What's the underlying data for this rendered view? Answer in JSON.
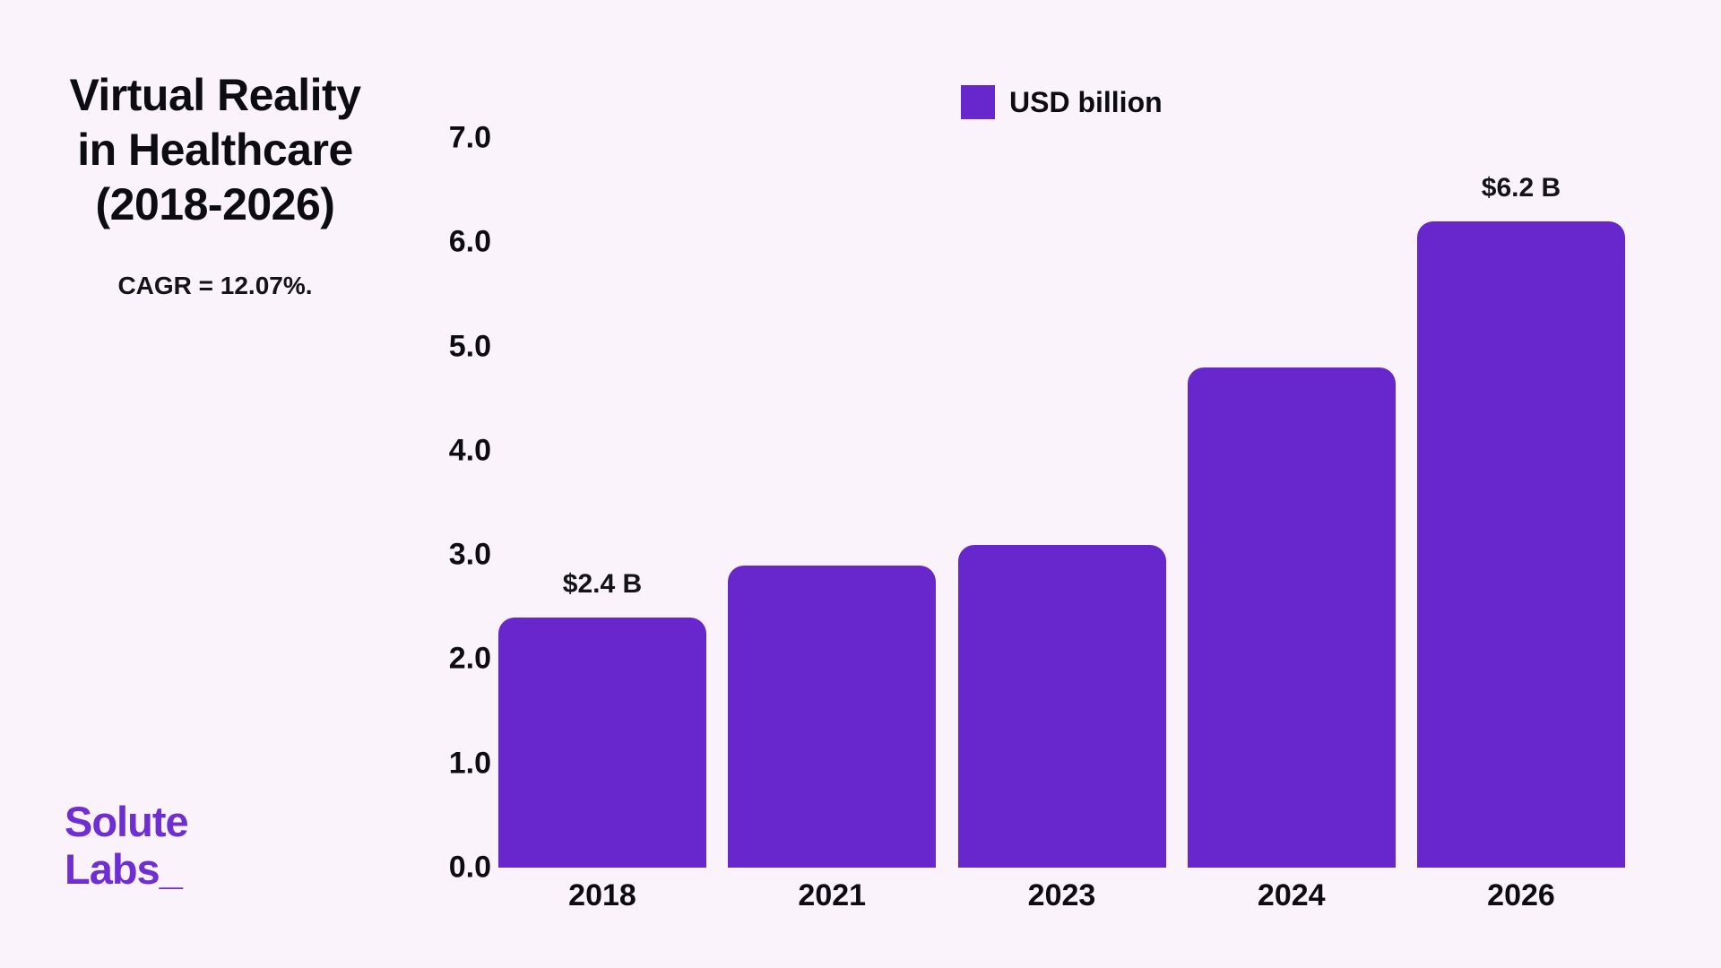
{
  "page": {
    "background_color": "#FAF3FB",
    "accent_color": "#6727CC",
    "logo_color": "#6F2ED4"
  },
  "header": {
    "title_line1": "Virtual Reality",
    "title_line2": "in Healthcare",
    "title_line3": "(2018-2026)",
    "subtitle": "CAGR = 12.07%."
  },
  "legend": {
    "label": "USD billion",
    "swatch_color": "#6727CC"
  },
  "logo": {
    "line1": "Solute",
    "line2": "Labs_"
  },
  "chart_data": {
    "type": "bar",
    "title": "Virtual Reality in Healthcare (2018-2026)",
    "subtitle": "CAGR = 12.07%.",
    "categories": [
      "2018",
      "2021",
      "2023",
      "2024",
      "2026"
    ],
    "values": [
      2.4,
      2.9,
      3.1,
      4.8,
      6.2
    ],
    "bar_labels": [
      "$2.4 B",
      "",
      "",
      "",
      "$6.2 B"
    ],
    "series_name": "USD billion",
    "xlabel": "",
    "ylabel": "",
    "ylim": [
      0,
      7
    ],
    "yticks": [
      "0.0",
      "1.0",
      "2.0",
      "3.0",
      "4.0",
      "5.0",
      "6.0",
      "7.0"
    ],
    "grid": false,
    "legend_position": "top-center",
    "bar_color": "#6727CC"
  }
}
